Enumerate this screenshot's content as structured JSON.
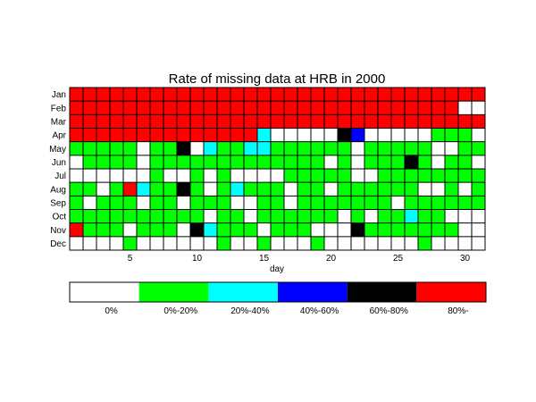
{
  "chart_data": {
    "type": "heatmap",
    "title": "Rate of missing data at HRB in 2000",
    "xlabel": "day",
    "ylabel": "",
    "x": [
      1,
      2,
      3,
      4,
      5,
      6,
      7,
      8,
      9,
      10,
      11,
      12,
      13,
      14,
      15,
      16,
      17,
      18,
      19,
      20,
      21,
      22,
      23,
      24,
      25,
      26,
      27,
      28,
      29,
      30,
      31
    ],
    "x_ticks": [
      "5",
      "10",
      "15",
      "20",
      "25",
      "30"
    ],
    "x_tick_values": [
      5,
      10,
      15,
      20,
      25,
      30
    ],
    "xlim": [
      0.5,
      31.5
    ],
    "rows": [
      "Jan",
      "Feb",
      "Mar",
      "Apr",
      "May",
      "Jun",
      "Jul",
      "Aug",
      "Sep",
      "Oct",
      "Nov",
      "Dec"
    ],
    "grid": true,
    "legend_position": "bottom",
    "categories": [
      {
        "label": "0%",
        "color": "#ffffff"
      },
      {
        "label": "0%-20%",
        "color": "#00ff00"
      },
      {
        "label": "20%-40%",
        "color": "#00ffff"
      },
      {
        "label": "40%-60%",
        "color": "#0000ff"
      },
      {
        "label": "60%-80%",
        "color": "#000000"
      },
      {
        "label": "80%-",
        "color": "#ff0000"
      }
    ],
    "cells": [
      "5555555555555555555555555555555",
      "5555555555555555555555555555500",
      "5555555555555555555555555555555",
      "5555555555555520000043000001110",
      "1111101140211221111110111110011",
      "0111101111111111111010111410110",
      "0000001001010000111110011111111",
      "1101521141012111011011111100101",
      "1011101101110011011111110111111",
      "1111111111011011111101011211000",
      "5111011104211101110004111111100",
      "0000100000010010001000000010000"
    ]
  }
}
